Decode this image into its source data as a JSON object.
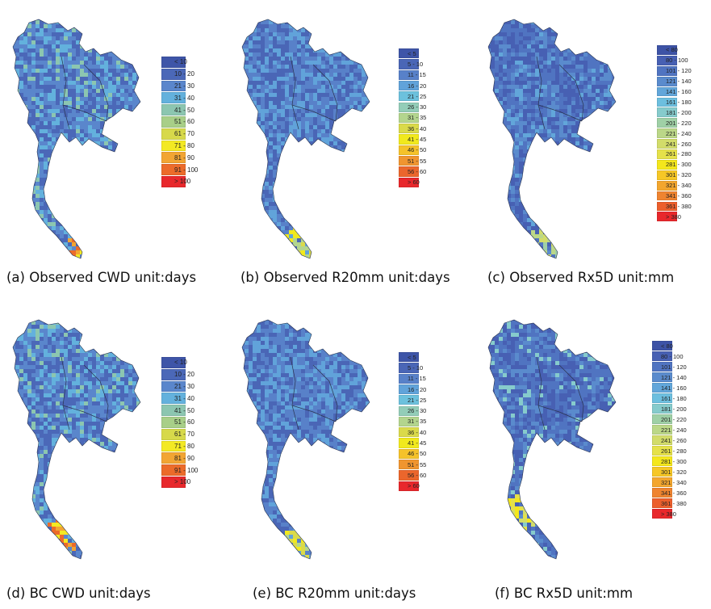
{
  "colors": {
    "cwd": [
      "#3e55a8",
      "#4b68b8",
      "#5a86cc",
      "#63b1dd",
      "#8cc6b0",
      "#a8cf88",
      "#d7d94a",
      "#f3e923",
      "#f2a533",
      "#ec6b2a",
      "#e8282c"
    ],
    "r20": [
      "#3e55a8",
      "#4a66b6",
      "#5881c9",
      "#61a3da",
      "#6cc1dd",
      "#93cdb8",
      "#b3d58e",
      "#dada4a",
      "#f1e91d",
      "#f5c22a",
      "#f09530",
      "#eb662c",
      "#e8282c"
    ],
    "rx5d": [
      "#3d53a6",
      "#4760b3",
      "#5074c1",
      "#5a8bcd",
      "#62a6da",
      "#6dbfdf",
      "#86cbcc",
      "#9fd0a6",
      "#bbd788",
      "#d2dc6a",
      "#e5e14a",
      "#f4e71c",
      "#f6c726",
      "#f3a62e",
      "#ef8430",
      "#ec5f2c",
      "#e8282c"
    ]
  },
  "panels": [
    {
      "caption": "(a) Observed CWD unit:days",
      "palette": "cwd",
      "legend": [
        "< 10",
        "10 - 20",
        "21 - 30",
        "31 - 40",
        "41 - 50",
        "51 - 60",
        "61 - 70",
        "71 - 80",
        "81 - 90",
        "91 - 100",
        "> 100"
      ]
    },
    {
      "caption": "(b) Observed R20mm unit:days",
      "palette": "r20",
      "legend": [
        "< 5",
        "5 - 10",
        "11 - 15",
        "16 - 20",
        "21 - 25",
        "26 - 30",
        "31 - 35",
        "36 - 40",
        "41 - 45",
        "46 - 50",
        "51 - 55",
        "56 - 60",
        "> 60"
      ]
    },
    {
      "caption": "(c) Observed Rx5D unit:mm",
      "palette": "rx5d",
      "legend": [
        "< 80",
        "80 - 100",
        "101 - 120",
        "121 - 140",
        "141 - 160",
        "161 - 180",
        "181 - 200",
        "201 - 220",
        "221 - 240",
        "241 - 260",
        "261 - 280",
        "281 - 300",
        "301 - 320",
        "321 - 340",
        "341 - 360",
        "361 - 380",
        "> 380"
      ]
    },
    {
      "caption": "(d) BC CWD unit:days",
      "palette": "cwd",
      "legend": [
        "< 10",
        "10 - 20",
        "21 - 30",
        "31 - 40",
        "41 - 50",
        "51 - 60",
        "61 - 70",
        "71 - 80",
        "81 - 90",
        "91 - 100",
        "> 100"
      ]
    },
    {
      "caption": "(e) BC  R20mm unit:days",
      "palette": "r20",
      "legend": [
        "< 5",
        "5  - 10",
        "11 - 15",
        "16 - 20",
        "21 - 25",
        "26 - 30",
        "31 - 35",
        "36 - 40",
        "41 - 45",
        "46 - 50",
        "51 - 55",
        "56 - 60",
        "> 60"
      ]
    },
    {
      "caption": "(f) BC Rx5D unit:mm",
      "palette": "rx5d",
      "legend": [
        "< 80",
        "80 - 100",
        "101 - 120",
        "121 - 140",
        "141 - 160",
        "161 - 180",
        "181 - 200",
        "201 - 220",
        "221 - 240",
        "241 - 260",
        "261 - 280",
        "281 - 300",
        "301 - 320",
        "321 - 340",
        "341 - 360",
        "361 - 380",
        "> 380"
      ]
    }
  ]
}
